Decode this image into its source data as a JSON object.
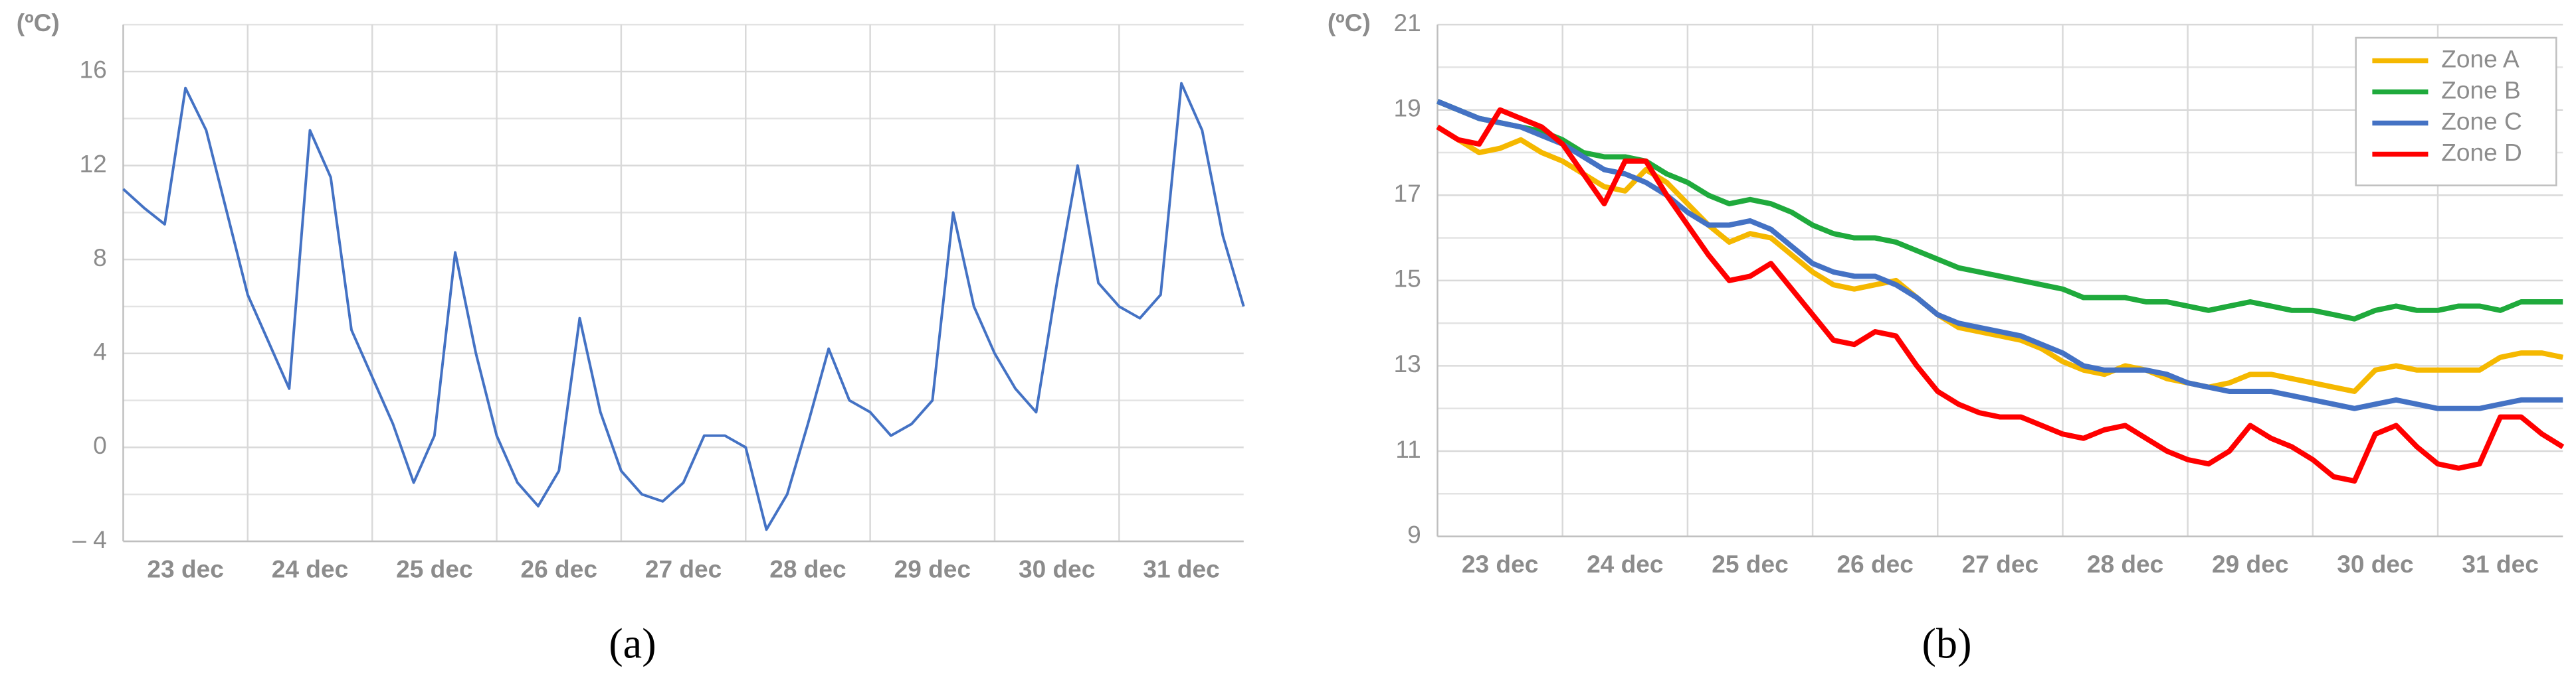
{
  "chart_data": [
    {
      "type": "line",
      "y_label": "(ºC)",
      "caption": "(a)",
      "categories": [
        null,
        null,
        null,
        "23 dec",
        null,
        null,
        null,
        null,
        null,
        "24 dec",
        null,
        null,
        null,
        null,
        null,
        "25 dec",
        null,
        null,
        null,
        null,
        null,
        "26 dec",
        null,
        null,
        null,
        null,
        null,
        "27 dec",
        null,
        null,
        null,
        null,
        null,
        "28 dec",
        null,
        null,
        null,
        null,
        null,
        "29 dec",
        null,
        null,
        null,
        null,
        null,
        "30 dec",
        null,
        null,
        null,
        null,
        null,
        "31 dec",
        null,
        null,
        null
      ],
      "values": [
        11,
        10.2,
        9.5,
        15.3,
        13.5,
        10,
        6.5,
        4.5,
        2.5,
        13.5,
        11.5,
        5,
        3,
        1,
        -1.5,
        0.5,
        8.3,
        4,
        0.5,
        -1.5,
        -2.5,
        -1,
        5.5,
        1.5,
        -1,
        -2,
        -2.3,
        -1.5,
        0.5,
        0.5,
        0,
        -3.5,
        -2,
        1,
        4.2,
        2,
        1.5,
        0.5,
        1,
        2,
        10,
        6,
        4,
        2.5,
        1.5,
        7,
        12,
        7,
        6,
        5.5,
        6.5,
        15.5,
        13.5,
        9,
        6
      ],
      "color": "#4472c4",
      "ylim": [
        -4,
        18
      ],
      "yticks": [
        {
          "value": -4,
          "label": "– 4"
        },
        0,
        4,
        8,
        12,
        16
      ],
      "minor_yticks": [
        -2,
        2,
        6,
        10,
        14,
        18
      ],
      "grid": true
    },
    {
      "type": "line",
      "y_label": "(ºC)",
      "caption": "(b)",
      "categories": [
        null,
        null,
        null,
        "23 dec",
        null,
        null,
        null,
        null,
        null,
        "24 dec",
        null,
        null,
        null,
        null,
        null,
        "25 dec",
        null,
        null,
        null,
        null,
        null,
        "26 dec",
        null,
        null,
        null,
        null,
        null,
        "27 dec",
        null,
        null,
        null,
        null,
        null,
        "28 dec",
        null,
        null,
        null,
        null,
        null,
        "29 dec",
        null,
        null,
        null,
        null,
        null,
        "30 dec",
        null,
        null,
        null,
        null,
        null,
        "31 dec",
        null,
        null,
        null
      ],
      "series": [
        {
          "name": "Zone A",
          "color": "#f5b800",
          "values": [
            18.6,
            18.3,
            18.0,
            18.1,
            18.3,
            18.0,
            17.8,
            17.5,
            17.2,
            17.1,
            17.6,
            17.3,
            16.8,
            16.3,
            15.9,
            16.1,
            16.0,
            15.6,
            15.2,
            14.9,
            14.8,
            14.9,
            15.0,
            14.6,
            14.2,
            13.9,
            13.8,
            13.7,
            13.6,
            13.4,
            13.1,
            12.9,
            12.8,
            13.0,
            12.9,
            12.7,
            12.6,
            12.5,
            12.6,
            12.8,
            12.8,
            12.7,
            12.6,
            12.5,
            12.4,
            12.9,
            13.0,
            12.9,
            12.9,
            12.9,
            12.9,
            13.2,
            13.3,
            13.3,
            13.2
          ]
        },
        {
          "name": "Zone B",
          "color": "#1faa3c",
          "values": [
            19.2,
            19.0,
            18.8,
            18.7,
            18.6,
            18.5,
            18.3,
            18.0,
            17.9,
            17.9,
            17.8,
            17.5,
            17.3,
            17.0,
            16.8,
            16.9,
            16.8,
            16.6,
            16.3,
            16.1,
            16.0,
            16.0,
            15.9,
            15.7,
            15.5,
            15.3,
            15.2,
            15.1,
            15.0,
            14.9,
            14.8,
            14.6,
            14.6,
            14.6,
            14.5,
            14.5,
            14.4,
            14.3,
            14.4,
            14.5,
            14.4,
            14.3,
            14.3,
            14.2,
            14.1,
            14.3,
            14.4,
            14.3,
            14.3,
            14.4,
            14.4,
            14.3,
            14.5,
            14.5,
            14.5
          ]
        },
        {
          "name": "Zone C",
          "color": "#4472c4",
          "values": [
            19.2,
            19.0,
            18.8,
            18.7,
            18.6,
            18.4,
            18.2,
            17.9,
            17.6,
            17.5,
            17.3,
            17.0,
            16.6,
            16.3,
            16.3,
            16.4,
            16.2,
            15.8,
            15.4,
            15.2,
            15.1,
            15.1,
            14.9,
            14.6,
            14.2,
            14.0,
            13.9,
            13.8,
            13.7,
            13.5,
            13.3,
            13.0,
            12.9,
            12.9,
            12.9,
            12.8,
            12.6,
            12.5,
            12.4,
            12.4,
            12.4,
            12.3,
            12.2,
            12.1,
            12.0,
            12.1,
            12.2,
            12.1,
            12.0,
            12.0,
            12.0,
            12.1,
            12.2,
            12.2,
            12.2
          ]
        },
        {
          "name": "Zone D",
          "color": "#ff0000",
          "values": [
            18.6,
            18.3,
            18.2,
            19.0,
            18.8,
            18.6,
            18.2,
            17.5,
            16.8,
            17.8,
            17.8,
            17.0,
            16.3,
            15.6,
            15.0,
            15.1,
            15.4,
            14.8,
            14.2,
            13.6,
            13.5,
            13.8,
            13.7,
            13.0,
            12.4,
            12.1,
            11.9,
            11.8,
            11.8,
            11.6,
            11.4,
            11.3,
            11.5,
            11.6,
            11.3,
            11.0,
            10.8,
            10.7,
            11.0,
            11.6,
            11.3,
            11.1,
            10.8,
            10.4,
            10.3,
            11.4,
            11.6,
            11.1,
            10.7,
            10.6,
            10.7,
            11.8,
            11.8,
            11.4,
            11.1
          ]
        }
      ],
      "ylim": [
        9,
        21
      ],
      "yticks": [
        9,
        11,
        13,
        15,
        17,
        19,
        21
      ],
      "minor_yticks": [
        10,
        12,
        14,
        16,
        18,
        20
      ],
      "grid": true,
      "legend": "upper right"
    }
  ]
}
